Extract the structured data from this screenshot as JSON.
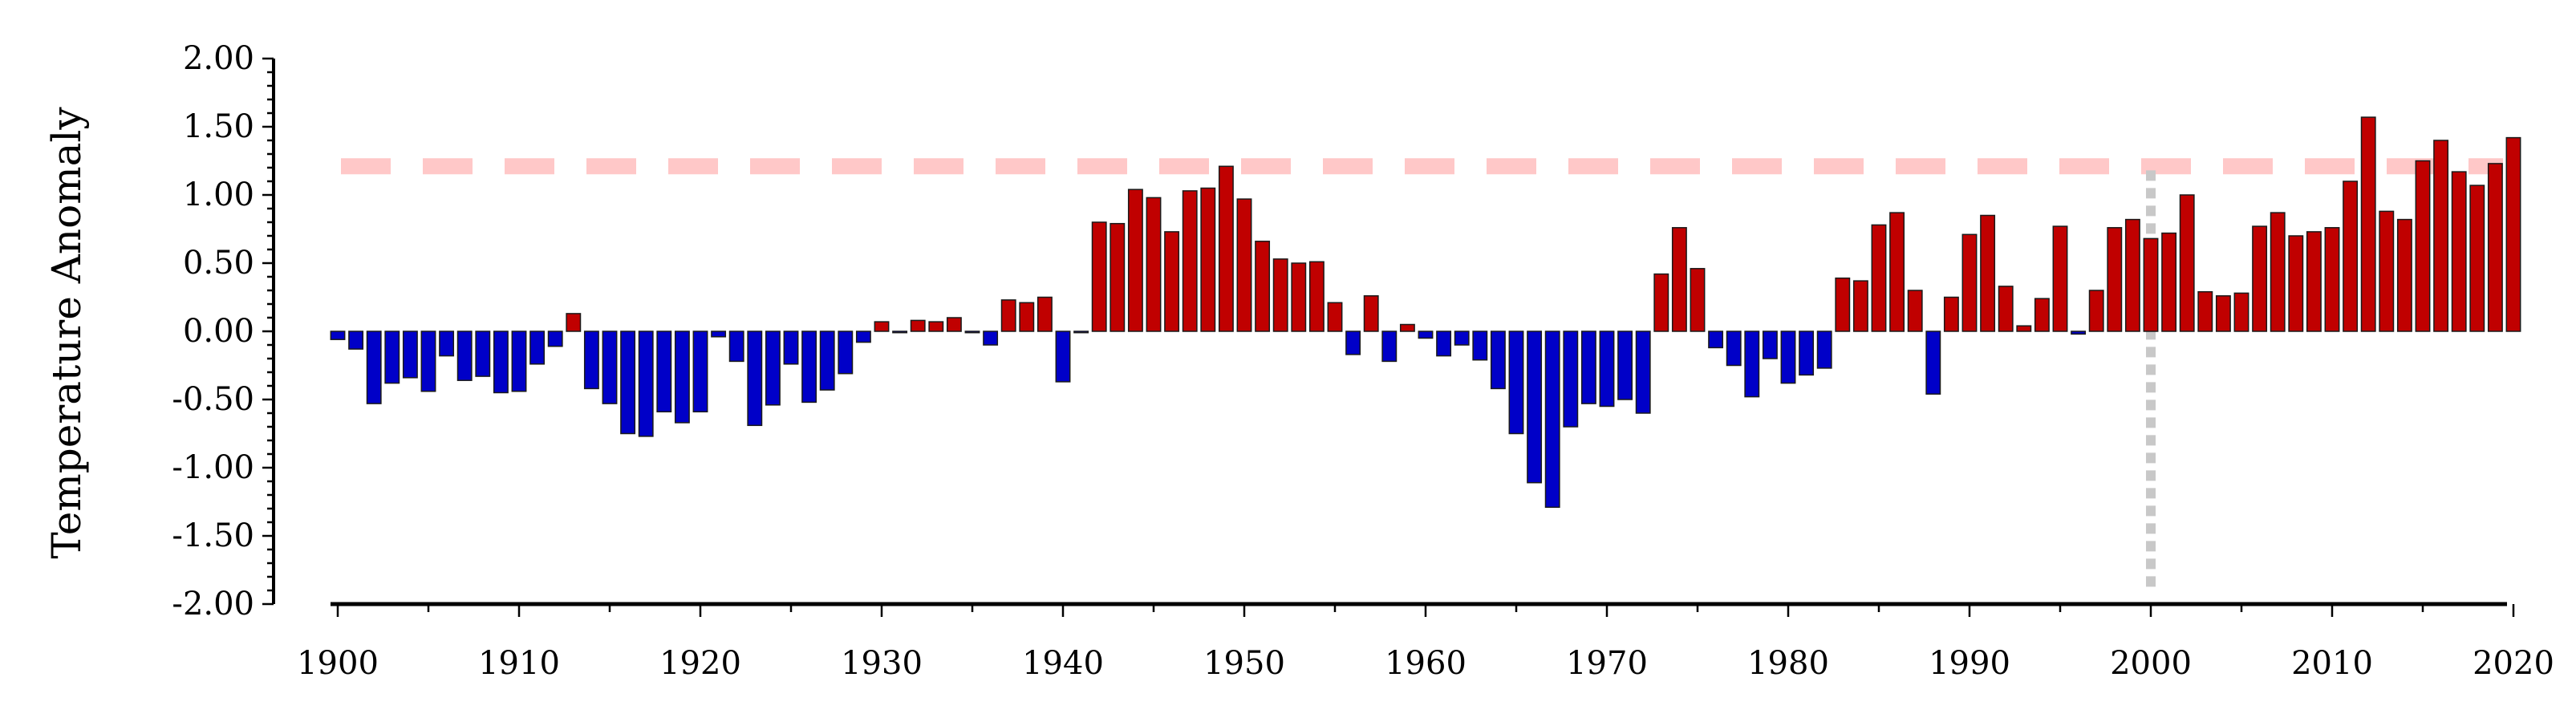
{
  "chart_data": {
    "type": "bar",
    "ylabel": "Temperature Anomaly",
    "xlabel": "",
    "ylim": [
      -2.0,
      2.0
    ],
    "xlim": [
      1899.5,
      2020.5
    ],
    "y_ticks": [
      "2.00",
      "1.50",
      "1.00",
      "0.50",
      "0.00",
      "-0.50",
      "-1.00",
      "-1.50",
      "-2.00"
    ],
    "x_ticks": [
      "1900",
      "1910",
      "1920",
      "1930",
      "1940",
      "1950",
      "1960",
      "1970",
      "1980",
      "1990",
      "2000",
      "2010",
      "2020"
    ],
    "grid": false,
    "colors": {
      "positive": "#c00000",
      "negative": "#0000c8",
      "threshold_line": "#ffc8c8",
      "marker_line": "#c8c8c8"
    },
    "reference_lines": {
      "horizontal_dashed_y": 1.21,
      "vertical_dotted_x": 2000
    },
    "years": [
      1900,
      1901,
      1902,
      1903,
      1904,
      1905,
      1906,
      1907,
      1908,
      1909,
      1910,
      1911,
      1912,
      1913,
      1914,
      1915,
      1916,
      1917,
      1918,
      1919,
      1920,
      1921,
      1922,
      1923,
      1924,
      1925,
      1926,
      1927,
      1928,
      1929,
      1930,
      1931,
      1932,
      1933,
      1934,
      1935,
      1936,
      1937,
      1938,
      1939,
      1940,
      1941,
      1942,
      1943,
      1944,
      1945,
      1946,
      1947,
      1948,
      1949,
      1950,
      1951,
      1952,
      1953,
      1954,
      1955,
      1956,
      1957,
      1958,
      1959,
      1960,
      1961,
      1962,
      1963,
      1964,
      1965,
      1966,
      1967,
      1968,
      1969,
      1970,
      1971,
      1972,
      1973,
      1974,
      1975,
      1976,
      1977,
      1978,
      1979,
      1980,
      1981,
      1982,
      1983,
      1984,
      1985,
      1986,
      1987,
      1988,
      1989,
      1990,
      1991,
      1992,
      1993,
      1994,
      1995,
      1996,
      1997,
      1998,
      1999,
      2000,
      2001,
      2002,
      2003,
      2004,
      2005,
      2006,
      2007,
      2008,
      2009,
      2010,
      2011,
      2012,
      2013,
      2014,
      2015,
      2016,
      2017,
      2018,
      2019,
      2020
    ],
    "values": [
      -0.06,
      -0.13,
      -0.53,
      -0.38,
      -0.34,
      -0.44,
      -0.18,
      -0.36,
      -0.33,
      -0.45,
      -0.44,
      -0.24,
      -0.11,
      0.13,
      -0.42,
      -0.53,
      -0.75,
      -0.77,
      -0.59,
      -0.67,
      -0.59,
      -0.04,
      -0.22,
      -0.69,
      -0.54,
      -0.24,
      -0.52,
      -0.43,
      -0.31,
      -0.08,
      0.07,
      -0.01,
      0.08,
      0.07,
      0.1,
      -0.01,
      -0.1,
      0.23,
      0.21,
      0.25,
      -0.37,
      -0.01,
      0.8,
      0.79,
      1.04,
      0.98,
      0.73,
      1.03,
      1.05,
      1.21,
      0.97,
      0.66,
      0.53,
      0.5,
      0.51,
      0.21,
      -0.17,
      0.26,
      -0.22,
      0.05,
      -0.05,
      -0.18,
      -0.1,
      -0.21,
      -0.42,
      -0.75,
      -1.11,
      -1.29,
      -0.7,
      -0.53,
      -0.55,
      -0.5,
      -0.6,
      0.42,
      0.76,
      0.46,
      -0.12,
      -0.25,
      -0.48,
      -0.2,
      -0.38,
      -0.32,
      -0.27,
      0.39,
      0.37,
      0.78,
      0.87,
      0.3,
      -0.46,
      0.25,
      0.71,
      0.85,
      0.33,
      0.04,
      0.24,
      0.77,
      -0.02,
      0.3,
      0.76,
      0.82,
      0.68,
      0.72,
      1.0,
      0.29,
      0.26,
      0.28,
      0.77,
      0.87,
      0.7,
      0.73,
      0.76,
      1.1,
      1.57,
      0.88,
      0.82,
      1.25,
      1.4,
      1.17,
      1.07,
      1.23,
      1.42
    ]
  }
}
